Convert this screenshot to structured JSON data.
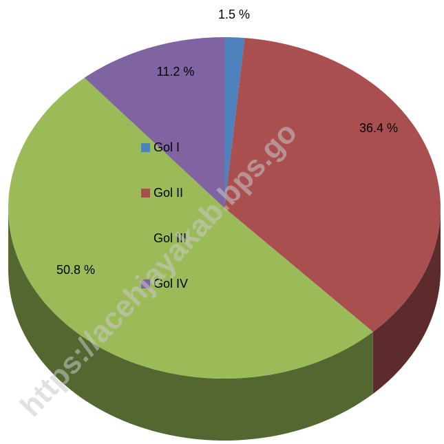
{
  "chart_data": {
    "type": "pie3d",
    "categories": [
      "Gol I",
      "Gol II",
      "Gol III",
      "Gol IV"
    ],
    "values": [
      1.5,
      36.4,
      50.8,
      11.2
    ],
    "value_labels": [
      "1.5 %",
      "36.4 %",
      "50.8 %",
      "11.2 %"
    ],
    "colors": [
      "#4f81bd",
      "#a94f50",
      "#9bbb59",
      "#8064a2"
    ],
    "legend": "center-left",
    "watermark": "https://acehjayakab.bps.go"
  }
}
